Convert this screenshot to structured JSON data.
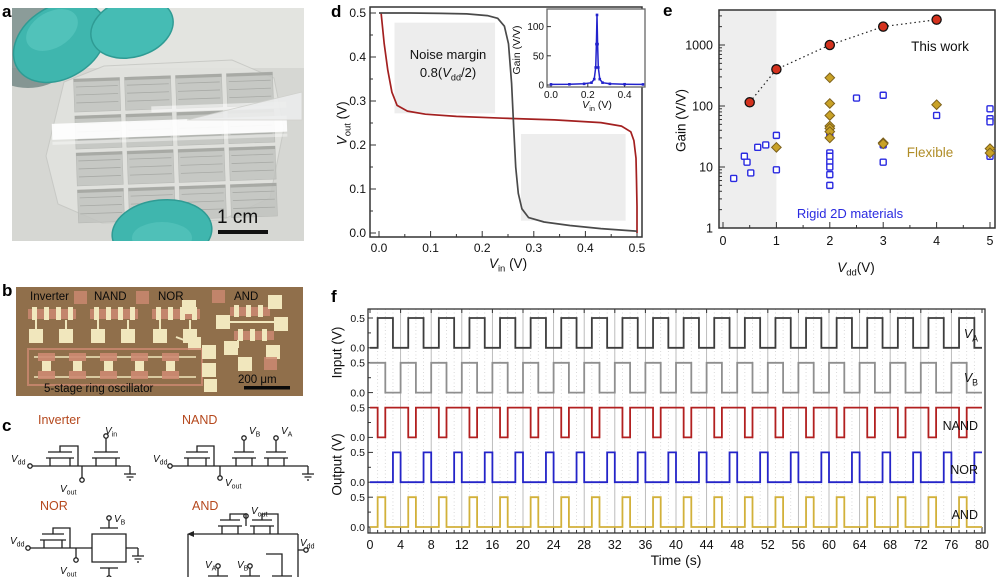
{
  "figure": {
    "panel_labels": {
      "a": "a",
      "b": "b",
      "c": "c",
      "d": "d",
      "e": "e",
      "f": "f"
    }
  },
  "sym": {
    "vdd": {
      "base": "V",
      "sub": "dd"
    },
    "vin": {
      "base": "V",
      "sub": "in"
    },
    "vout": {
      "base": "V",
      "sub": "out"
    },
    "va": {
      "base": "V",
      "sub": "A"
    },
    "vb": {
      "base": "V",
      "sub": "B"
    }
  },
  "units": {
    "v_sp": " (V)",
    "v": "(V)"
  },
  "panel_a": {
    "scale_bar": "1 cm",
    "glove_color": "#3fb6ae",
    "film_color": "#e2e3df"
  },
  "panel_b": {
    "labels": [
      "Inverter",
      "NAND",
      "NOR",
      "AND"
    ],
    "bottom_label": "5-stage ring oscillator",
    "scale_bar": "200 μm",
    "background_color": "#8d6b49",
    "pad_color": "#f1e7bd",
    "pink_color": "#cd8a72"
  },
  "panel_c": {
    "title_color": "#b5481d",
    "gates": {
      "inverter": {
        "title": "Inverter"
      },
      "nand": {
        "title": "NAND"
      },
      "nor": {
        "title": "NOR"
      },
      "and": {
        "title": "AND"
      }
    }
  },
  "chart_data": [
    {
      "id": "transfer_curve",
      "type": "line",
      "xlim": [
        0,
        0.5
      ],
      "ylim": [
        0,
        0.5
      ],
      "xticks": [
        "0.0",
        "0.1",
        "0.2",
        "0.3",
        "0.4",
        "0.5"
      ],
      "yticks": [
        "0.0",
        "0.1",
        "0.2",
        "0.3",
        "0.4",
        "0.5"
      ],
      "annotation_line1": "Noise margin",
      "annotation_line2": {
        "pre": "0.8(",
        "base": "V",
        "sub": "dd",
        "post": "/2)"
      },
      "noise_margin_boxes": [
        [
          0.03,
          0.272,
          0.225,
          0.478
        ],
        [
          0.275,
          0.028,
          0.478,
          0.225
        ]
      ],
      "box_fill": "#ededed",
      "series": [
        {
          "name": "forward-vtc",
          "color": "#4a4a4a",
          "points": [
            [
              0,
              0.5
            ],
            [
              0.06,
              0.5
            ],
            [
              0.12,
              0.499
            ],
            [
              0.17,
              0.498
            ],
            [
              0.21,
              0.494
            ],
            [
              0.23,
              0.488
            ],
            [
              0.243,
              0.47
            ],
            [
              0.251,
              0.43
            ],
            [
              0.257,
              0.34
            ],
            [
              0.261,
              0.24
            ],
            [
              0.265,
              0.15
            ],
            [
              0.27,
              0.09
            ],
            [
              0.277,
              0.055
            ],
            [
              0.29,
              0.035
            ],
            [
              0.32,
              0.025
            ],
            [
              0.37,
              0.017
            ],
            [
              0.43,
              0.01
            ],
            [
              0.5,
              0.004
            ]
          ]
        },
        {
          "name": "mirrored-vtc",
          "color": "#a32020",
          "mirror_of": "forward-vtc"
        }
      ]
    },
    {
      "id": "gain_inset",
      "type": "line",
      "ylabel": "Gain (V/V)",
      "xlim": [
        0,
        0.5
      ],
      "ylim": [
        0,
        125
      ],
      "xticks": [
        "0.0",
        "0.2",
        "0.4"
      ],
      "xtick_vals": [
        0,
        0.2,
        0.4
      ],
      "yticks": [
        "0",
        "50",
        "100"
      ],
      "ytick_vals": [
        0,
        50,
        100
      ],
      "color": "#2222cc",
      "points": [
        [
          0,
          1
        ],
        [
          0.1,
          1.2
        ],
        [
          0.18,
          2
        ],
        [
          0.22,
          4
        ],
        [
          0.235,
          10
        ],
        [
          0.243,
          30
        ],
        [
          0.247,
          70
        ],
        [
          0.25,
          120
        ],
        [
          0.253,
          70
        ],
        [
          0.257,
          30
        ],
        [
          0.265,
          10
        ],
        [
          0.28,
          4
        ],
        [
          0.32,
          2
        ],
        [
          0.4,
          1.3
        ],
        [
          0.5,
          1
        ]
      ]
    },
    {
      "id": "benchmark",
      "type": "scatter",
      "yscale": "log",
      "ylabel": "Gain (V/V)",
      "xlim": [
        0,
        5.15
      ],
      "ylim": [
        1,
        3500
      ],
      "xticks": [
        0,
        1,
        2,
        3,
        4,
        5
      ],
      "yticks": [
        1,
        10,
        100,
        1000
      ],
      "shaded_x_range": [
        0,
        1
      ],
      "shade_color": "#eeeeee",
      "series": [
        {
          "name": "This work",
          "marker": "circle",
          "color": "#d4321e",
          "edge": "#111111",
          "line": "dotted",
          "label_color": "#111111",
          "points": [
            [
              0.5,
              115
            ],
            [
              1,
              400
            ],
            [
              2,
              1000
            ],
            [
              3,
              2000
            ],
            [
              4,
              2600
            ]
          ]
        },
        {
          "name": "Flexible",
          "marker": "diamond",
          "color": "#c9a227",
          "edge": "#7d611c",
          "label_color": "#b08d28",
          "points": [
            [
              1,
              21
            ],
            [
              2,
              290
            ],
            [
              2,
              110
            ],
            [
              2,
              70
            ],
            [
              2,
              47
            ],
            [
              2,
              43
            ],
            [
              2,
              38
            ],
            [
              2,
              30
            ],
            [
              3,
              25
            ],
            [
              3,
              24
            ],
            [
              4,
              105
            ],
            [
              5,
              20
            ],
            [
              5,
              17
            ]
          ]
        },
        {
          "name": "Rigid 2D materials",
          "marker": "square-open",
          "color": "#2a2ae0",
          "label_color": "#2a2ae0",
          "points": [
            [
              0.2,
              6.5
            ],
            [
              0.4,
              15
            ],
            [
              0.45,
              12
            ],
            [
              0.52,
              8
            ],
            [
              0.65,
              21
            ],
            [
              0.8,
              23
            ],
            [
              1,
              33
            ],
            [
              1,
              9
            ],
            [
              2,
              35
            ],
            [
              2,
              17
            ],
            [
              2,
              15
            ],
            [
              2,
              12
            ],
            [
              2,
              10
            ],
            [
              2,
              7.5
            ],
            [
              2,
              5
            ],
            [
              2.5,
              135
            ],
            [
              3,
              150
            ],
            [
              3,
              23
            ],
            [
              3,
              12
            ],
            [
              4,
              70
            ],
            [
              5,
              90
            ],
            [
              5,
              62
            ],
            [
              5,
              55
            ],
            [
              5,
              15
            ]
          ]
        }
      ]
    },
    {
      "id": "logic_waveforms",
      "type": "line",
      "xlabel": "Time (s)",
      "ylabel_input": "Input (V)",
      "ylabel_output": "Output (V)",
      "xlim": [
        0,
        80
      ],
      "period": 4,
      "xticks": [
        0,
        4,
        8,
        12,
        16,
        20,
        24,
        28,
        32,
        36,
        40,
        44,
        48,
        52,
        56,
        60,
        64,
        68,
        72,
        76,
        80
      ],
      "level_ticks": [
        "0.5",
        "0.0"
      ],
      "levels": [
        0,
        0.5
      ],
      "traces": [
        {
          "label_base": "V",
          "label_sub": "A",
          "color": "#3d3d3d",
          "high_intervals": [
            [
              1,
              3
            ]
          ]
        },
        {
          "label_base": "V",
          "label_sub": "B",
          "color": "#8f8f8f",
          "high_intervals": [
            [
              0,
              2
            ]
          ]
        },
        {
          "label": "NAND",
          "color": "#b22020",
          "high_intervals": [
            [
              0,
              1
            ],
            [
              2,
              4
            ]
          ]
        },
        {
          "label": "NOR",
          "color": "#2424c8",
          "high_intervals": [
            [
              3,
              4
            ]
          ]
        },
        {
          "label": "AND",
          "color": "#d2b13a",
          "high_intervals": [
            [
              1,
              2
            ]
          ]
        }
      ]
    }
  ]
}
